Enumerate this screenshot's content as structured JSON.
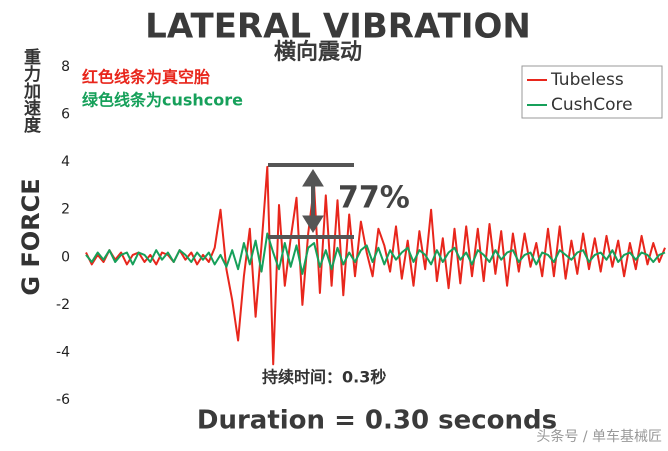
{
  "chart_data": {
    "type": "line",
    "title": "LATERAL VIBRATION",
    "subtitle": "横向震动",
    "y_label": "G FORCE",
    "y_label_cn": "重力加速度",
    "x_label": "Duration = 0.30 seconds",
    "annotations": [
      "红色线条为真空胎",
      "绿色线条为cushcore",
      "77%",
      "持续时间：0.3秒"
    ],
    "watermark": "头条号 / 单车基械匠",
    "ylim": [
      -6,
      8
    ],
    "yticks": [
      -6,
      -4,
      -2,
      0,
      2,
      4,
      6,
      8
    ],
    "legend": "upper right",
    "series": [
      {
        "name": "Tubeless",
        "color": "#e8261c",
        "values": [
          0.2,
          -0.3,
          0.1,
          -0.2,
          0.3,
          -0.1,
          0.2,
          -0.3,
          0.1,
          0.2,
          -0.2,
          0.1,
          -0.3,
          0.2,
          0.1,
          -0.2,
          0.3,
          -0.1,
          0.2,
          -0.3,
          0.1,
          -0.2,
          0.4,
          2.0,
          -0.5,
          -1.8,
          -3.5,
          -0.8,
          1.2,
          -2.5,
          0.5,
          3.8,
          -4.5,
          2.2,
          -1.2,
          0.8,
          2.5,
          -2.0,
          1.0,
          3.0,
          -1.5,
          2.6,
          -1.2,
          2.4,
          -1.6,
          1.8,
          -0.8,
          1.5,
          0.2,
          -0.8,
          1.2,
          0.5,
          -0.6,
          1.3,
          -0.9,
          0.7,
          -1.2,
          1.1,
          -0.5,
          2.0,
          -1.0,
          0.8,
          -1.3,
          1.2,
          -1.1,
          1.3,
          -0.8,
          1.2,
          -1.0,
          1.4,
          -0.7,
          1.1,
          -1.2,
          1.0,
          -0.6,
          1.0,
          -0.4,
          0.6,
          -0.8,
          1.2,
          -0.8,
          1.3,
          -0.9,
          0.7,
          -0.7,
          1.0,
          -0.5,
          0.8,
          -0.6,
          0.9,
          -0.4,
          0.7,
          -0.8,
          0.6,
          -0.5,
          0.9,
          -0.3,
          0.6,
          -0.2,
          0.4
        ]
      },
      {
        "name": "CushCore",
        "color": "#16a05a",
        "values": [
          0.1,
          -0.2,
          0.2,
          -0.1,
          0.3,
          -0.2,
          0.1,
          0.2,
          -0.3,
          0.2,
          0.1,
          -0.2,
          0.3,
          -0.1,
          0.2,
          -0.2,
          0.3,
          0.1,
          -0.2,
          0.2,
          -0.1,
          0.2,
          -0.3,
          0.1,
          -0.4,
          0.3,
          -0.5,
          0.6,
          -0.3,
          0.7,
          -0.6,
          1.0,
          0.2,
          -0.5,
          0.6,
          -0.4,
          0.5,
          -0.7,
          0.4,
          0.6,
          -0.4,
          0.3,
          -0.5,
          0.4,
          -0.3,
          0.2,
          -0.2,
          0.3,
          0.5,
          -0.2,
          0.4,
          -0.3,
          0.3,
          -0.1,
          0.2,
          0.4,
          -0.2,
          0.3,
          0.1,
          -0.3,
          0.3,
          -0.2,
          0.2,
          0.4,
          -0.1,
          0.2,
          -0.3,
          0.3,
          0.1,
          -0.2,
          0.3,
          -0.1,
          0.2,
          0.3,
          -0.2,
          0.1,
          0.2,
          -0.3,
          0.2,
          0.1,
          -0.2,
          0.3,
          0.1,
          -0.1,
          0.2,
          0.3,
          -0.2,
          0.1,
          0.2,
          -0.1,
          0.3,
          -0.2,
          0.1,
          0.2,
          -0.1,
          0.2,
          0.1,
          -0.2,
          0.1,
          0.2
        ]
      }
    ]
  }
}
